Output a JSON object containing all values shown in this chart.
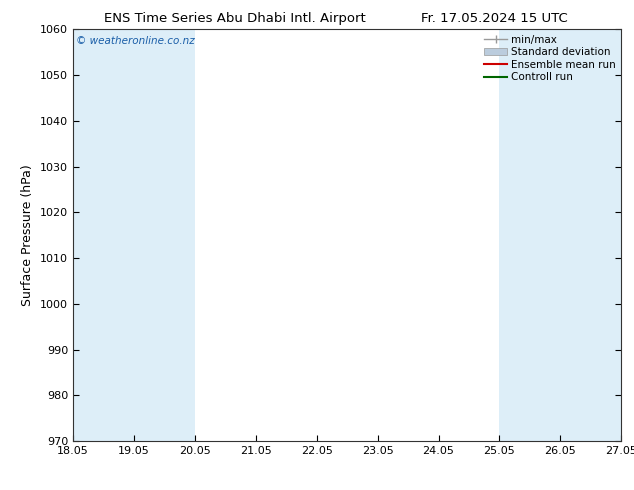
{
  "title_left": "ENS Time Series Abu Dhabi Intl. Airport",
  "title_right": "Fr. 17.05.2024 15 UTC",
  "ylabel": "Surface Pressure (hPa)",
  "ylim": [
    970,
    1060
  ],
  "yticks": [
    970,
    980,
    990,
    1000,
    1010,
    1020,
    1030,
    1040,
    1050,
    1060
  ],
  "xtick_labels": [
    "18.05",
    "19.05",
    "20.05",
    "21.05",
    "22.05",
    "23.05",
    "24.05",
    "25.05",
    "26.05",
    "27.05"
  ],
  "xlim_min": 0,
  "xlim_max": 9,
  "shaded_bands": [
    {
      "x_start": 0.0,
      "x_end": 1.0,
      "color": "#ddeef8"
    },
    {
      "x_start": 1.0,
      "x_end": 2.0,
      "color": "#ddeef8"
    },
    {
      "x_start": 7.0,
      "x_end": 8.0,
      "color": "#ddeef8"
    },
    {
      "x_start": 8.0,
      "x_end": 9.0,
      "color": "#ddeef8"
    }
  ],
  "watermark_text": "© weatheronline.co.nz",
  "watermark_color": "#1a5ea8",
  "background_color": "#ffffff",
  "legend_entries": [
    {
      "label": "min/max",
      "color": "#999999"
    },
    {
      "label": "Standard deviation",
      "color": "#bbccdd"
    },
    {
      "label": "Ensemble mean run",
      "color": "#cc0000"
    },
    {
      "label": "Controll run",
      "color": "#006600"
    }
  ],
  "fig_width": 6.34,
  "fig_height": 4.9,
  "dpi": 100
}
